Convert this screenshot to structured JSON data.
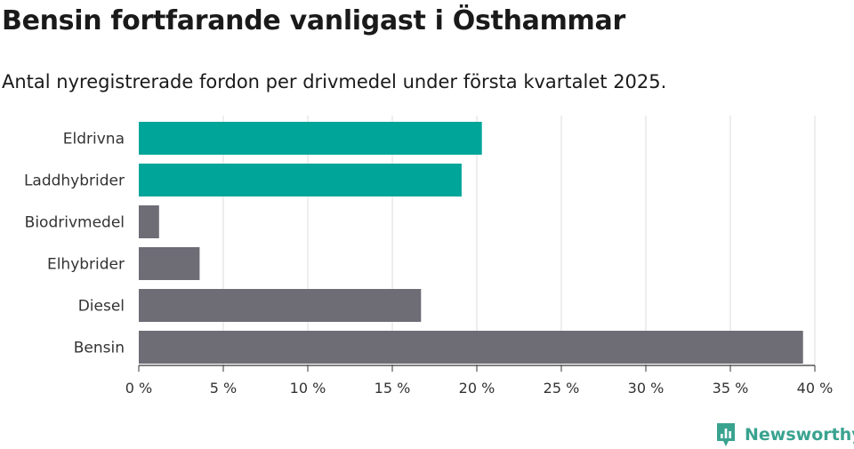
{
  "title": "Bensin fortfarande vanligast i Östhammar",
  "subtitle": "Antal nyregistrerade fordon per drivmedel under första kvartalet 2025.",
  "brand": {
    "name": "Newsworthy",
    "icon": "newsworthy-logo-icon"
  },
  "colors": {
    "highlight": "#00a59a",
    "base": "#6e6c75",
    "grid": "#dddddd",
    "axis": "#333333",
    "brand": "#3aa390"
  },
  "chart_data": {
    "type": "bar",
    "orientation": "horizontal",
    "categories": [
      "Eldrivna",
      "Laddhybrider",
      "Biodrivmedel",
      "Elhybrider",
      "Diesel",
      "Bensin"
    ],
    "values": [
      20.3,
      19.1,
      1.2,
      3.6,
      16.7,
      39.3
    ],
    "highlighted": [
      "Eldrivna",
      "Laddhybrider"
    ],
    "x_ticks": [
      0,
      5,
      10,
      15,
      20,
      25,
      30,
      35,
      40
    ],
    "x_tick_labels": [
      "0 %",
      "5 %",
      "10 %",
      "15 %",
      "20 %",
      "25 %",
      "30 %",
      "35 %",
      "40 %"
    ],
    "xlim": [
      0,
      40
    ],
    "unit": "%",
    "grid": true
  }
}
